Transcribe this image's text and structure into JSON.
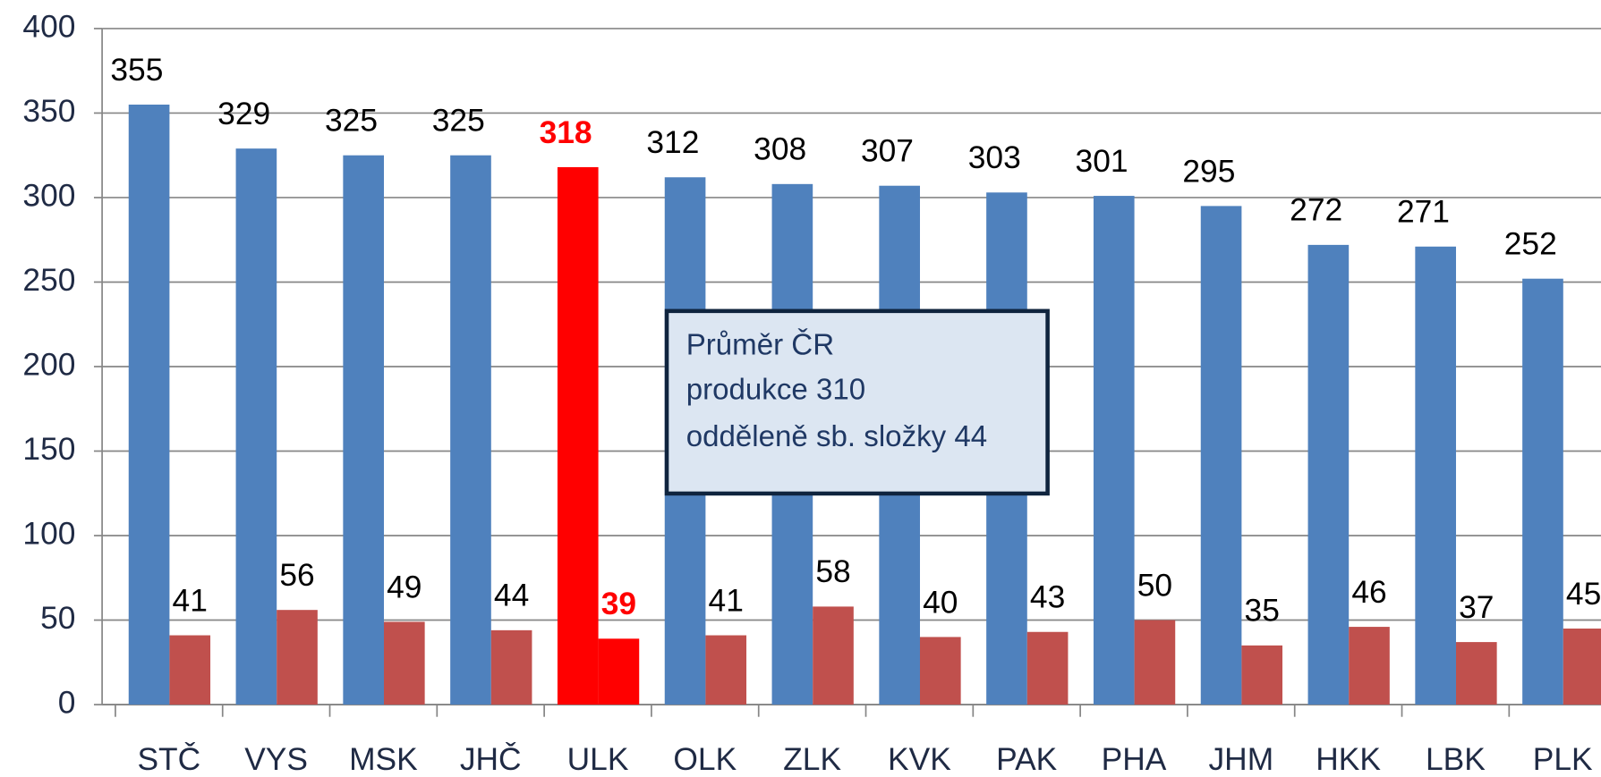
{
  "chart_data": {
    "type": "bar",
    "categories": [
      "STČ",
      "VYS",
      "MSK",
      "JHČ",
      "ULK",
      "OLK",
      "ZLK",
      "KVK",
      "PAK",
      "PHA",
      "JHM",
      "HKK",
      "LBK",
      "PLK"
    ],
    "series": [
      {
        "color": "#4f81bd",
        "values": [
          355,
          329,
          325,
          325,
          318,
          312,
          308,
          307,
          303,
          301,
          295,
          272,
          271,
          252
        ],
        "colors": [
          "#4f81bd",
          "#4f81bd",
          "#4f81bd",
          "#4f81bd",
          "#ff0000",
          "#4f81bd",
          "#4f81bd",
          "#4f81bd",
          "#4f81bd",
          "#4f81bd",
          "#4f81bd",
          "#4f81bd",
          "#4f81bd",
          "#4f81bd"
        ]
      },
      {
        "color": "#c0504d",
        "values": [
          41,
          56,
          49,
          44,
          39,
          41,
          58,
          40,
          43,
          50,
          35,
          46,
          37,
          45
        ],
        "colors": [
          "#c0504d",
          "#c0504d",
          "#c0504d",
          "#c0504d",
          "#ff0000",
          "#c0504d",
          "#c0504d",
          "#c0504d",
          "#c0504d",
          "#c0504d",
          "#c0504d",
          "#c0504d",
          "#c0504d",
          "#c0504d"
        ]
      }
    ],
    "ylim": [
      0,
      400
    ],
    "yticks": [
      0,
      50,
      100,
      150,
      200,
      250,
      300,
      350,
      400
    ],
    "grid": true,
    "annotation": [
      "Průměr  ČR",
      "produkce 310",
      "odděleně sb. složky 44"
    ]
  }
}
